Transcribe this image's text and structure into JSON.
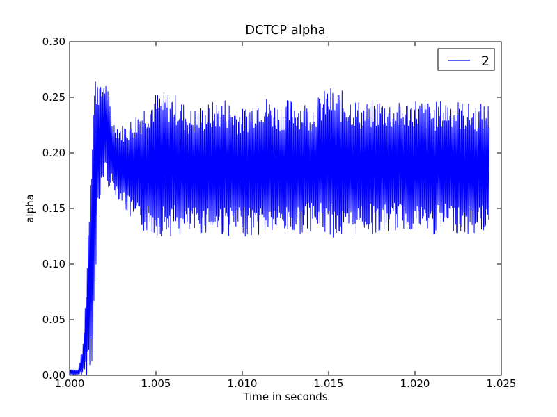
{
  "chart_data": {
    "type": "line",
    "title": "DCTCP alpha",
    "xlabel": "Time in seconds",
    "ylabel": "alpha",
    "xlim": [
      1.0,
      1.025
    ],
    "ylim": [
      0.0,
      0.3
    ],
    "grid": false,
    "legend_position": "top-right",
    "x_ticks": [
      "1.000",
      "1.005",
      "1.010",
      "1.015",
      "1.020",
      "1.025"
    ],
    "y_ticks": [
      "0.00",
      "0.05",
      "0.10",
      "0.15",
      "0.20",
      "0.25",
      "0.30"
    ],
    "series": [
      {
        "name": "2",
        "color": "#0000ff",
        "x_range": [
          1.0,
          1.0243
        ],
        "description": "rapid oscillation",
        "envelope": {
          "x": [
            1.0,
            1.0005,
            1.0008,
            1.001,
            1.0012,
            1.0014,
            1.0016,
            1.0018,
            1.002,
            1.0022,
            1.0025,
            1.003,
            1.0035,
            1.004,
            1.005,
            1.006,
            1.007,
            1.008,
            1.009,
            1.01,
            1.011,
            1.012,
            1.013,
            1.014,
            1.015,
            1.016,
            1.017,
            1.018,
            1.019,
            1.02,
            1.021,
            1.022,
            1.023,
            1.0243
          ],
          "upper": [
            0.006,
            0.005,
            0.03,
            0.1,
            0.2,
            0.27,
            0.28,
            0.26,
            0.27,
            0.26,
            0.23,
            0.225,
            0.23,
            0.24,
            0.255,
            0.255,
            0.24,
            0.245,
            0.25,
            0.24,
            0.255,
            0.245,
            0.25,
            0.245,
            0.26,
            0.255,
            0.245,
            0.25,
            0.245,
            0.25,
            0.245,
            0.25,
            0.245,
            0.245
          ],
          "lower": [
            0.0,
            0.0,
            0.0,
            0.0,
            0.0,
            0.02,
            0.12,
            0.16,
            0.18,
            0.17,
            0.165,
            0.155,
            0.14,
            0.13,
            0.125,
            0.125,
            0.125,
            0.128,
            0.125,
            0.125,
            0.125,
            0.128,
            0.125,
            0.13,
            0.125,
            0.12,
            0.13,
            0.125,
            0.13,
            0.13,
            0.125,
            0.13,
            0.125,
            0.13
          ]
        }
      }
    ]
  }
}
